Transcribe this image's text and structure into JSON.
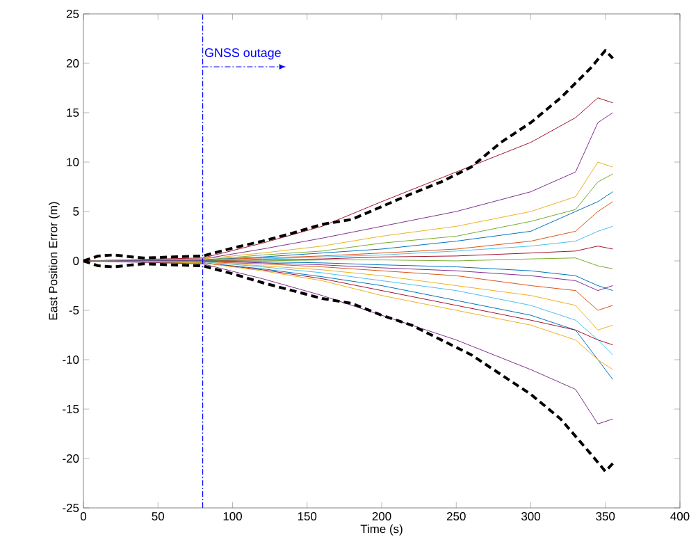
{
  "chart_data": {
    "type": "line",
    "xlabel": "Time (s)",
    "ylabel": "East Position Error (m)",
    "xlim": [
      0,
      400
    ],
    "ylim": [
      -25,
      25
    ],
    "xticks": [
      0,
      50,
      100,
      150,
      200,
      250,
      300,
      350,
      400
    ],
    "yticks": [
      -25,
      -20,
      -15,
      -10,
      -5,
      0,
      5,
      10,
      15,
      20,
      25
    ],
    "grid": false,
    "marker": "none",
    "x": [
      0,
      80,
      120,
      160,
      200,
      250,
      300,
      330,
      345,
      355
    ],
    "series": [
      {
        "color": "#a2142f",
        "values": [
          0,
          0.3,
          1.8,
          3.5,
          6,
          9,
          12,
          14.5,
          16.5,
          16
        ]
      },
      {
        "color": "#7e2f8e",
        "values": [
          0,
          0.2,
          1.2,
          2.3,
          3.5,
          5,
          7,
          9,
          14,
          15
        ]
      },
      {
        "color": "#edb120",
        "values": [
          0,
          0.2,
          0.8,
          1.5,
          2.5,
          3.5,
          5,
          6.5,
          10,
          9.5
        ]
      },
      {
        "color": "#77ac30",
        "values": [
          0,
          0.1,
          0.6,
          1,
          1.8,
          2.5,
          4,
          5.2,
          8,
          8.8
        ]
      },
      {
        "color": "#0072bd",
        "values": [
          0,
          0.1,
          0.4,
          0.8,
          1.2,
          2,
          3,
          5,
          6,
          7
        ]
      },
      {
        "color": "#d95319",
        "values": [
          0,
          0.1,
          0.3,
          0.5,
          0.8,
          1.2,
          2,
          3,
          5,
          6
        ]
      },
      {
        "color": "#4dbeee",
        "values": [
          0,
          0,
          0.2,
          0.4,
          0.6,
          1,
          1.5,
          2,
          3,
          3.5
        ]
      },
      {
        "color": "#a2142f",
        "values": [
          0,
          0,
          0.1,
          0.2,
          0.4,
          0.5,
          0.8,
          1,
          1.5,
          1.2
        ]
      },
      {
        "color": "#77ac30",
        "values": [
          0,
          0,
          0,
          0.1,
          0.1,
          0,
          0.2,
          0.3,
          -0.5,
          -0.8
        ]
      },
      {
        "color": "#0072bd",
        "values": [
          0,
          0,
          -0.1,
          -0.2,
          -0.4,
          -0.6,
          -1,
          -1.5,
          -2.5,
          -3
        ]
      },
      {
        "color": "#7e2f8e",
        "values": [
          0,
          0,
          -0.2,
          -0.4,
          -0.7,
          -1,
          -1.5,
          -2,
          -3,
          -2.5
        ]
      },
      {
        "color": "#d95319",
        "values": [
          0,
          -0.1,
          -0.3,
          -0.6,
          -1,
          -1.5,
          -2.5,
          -3,
          -5,
          -4.5
        ]
      },
      {
        "color": "#edb120",
        "values": [
          0,
          -0.1,
          -0.5,
          -0.9,
          -1.5,
          -2.5,
          -3.5,
          -4.5,
          -7,
          -6.5
        ]
      },
      {
        "color": "#4dbeee",
        "values": [
          0,
          -0.1,
          -0.6,
          -1.2,
          -2,
          -3,
          -4.5,
          -6,
          -8,
          -9.5
        ]
      },
      {
        "color": "#0072bd",
        "values": [
          0,
          -0.2,
          -0.8,
          -1.6,
          -2.5,
          -4,
          -5.5,
          -7,
          -10,
          -12
        ]
      },
      {
        "color": "#a2142f",
        "values": [
          0,
          -0.2,
          -0.9,
          -1.8,
          -3,
          -4.5,
          -6,
          -7,
          -8,
          -8.5
        ]
      },
      {
        "color": "#edb120",
        "values": [
          0,
          -0.2,
          -1,
          -2,
          -3.5,
          -5,
          -6.5,
          -8,
          -10,
          -11
        ]
      },
      {
        "color": "#7e2f8e",
        "values": [
          0,
          -0.3,
          -1.8,
          -3.5,
          -5.5,
          -8,
          -11,
          -13,
          -16.5,
          -16
        ]
      },
      {
        "color": "#000000",
        "line_style": "dashed",
        "x": [
          0,
          10,
          20,
          40,
          60,
          80,
          100,
          120,
          140,
          160,
          180,
          200,
          220,
          240,
          260,
          280,
          300,
          320,
          340,
          350,
          355
        ],
        "values": [
          0,
          0.5,
          0.6,
          0.3,
          0.4,
          0.5,
          1.3,
          2,
          2.8,
          3.7,
          4.2,
          5.5,
          6.8,
          8,
          9.5,
          12,
          14,
          16.5,
          19.5,
          21.3,
          20.5
        ]
      },
      {
        "color": "#000000",
        "line_style": "dashed",
        "x": [
          0,
          10,
          20,
          40,
          60,
          80,
          100,
          120,
          140,
          160,
          180,
          200,
          220,
          240,
          260,
          280,
          300,
          320,
          340,
          350,
          355
        ],
        "values": [
          0,
          -0.5,
          -0.6,
          -0.3,
          -0.4,
          -0.5,
          -1.3,
          -2.2,
          -3,
          -3.8,
          -4.3,
          -5.5,
          -6.5,
          -8,
          -9.5,
          -11.5,
          -13.5,
          -16,
          -19.5,
          -21.3,
          -20.5
        ]
      }
    ],
    "ref_lines": [
      {
        "axis": "x",
        "value": 80,
        "label": "GNSS outage",
        "color": "#0000ff",
        "line_style": "dashdot"
      }
    ]
  }
}
